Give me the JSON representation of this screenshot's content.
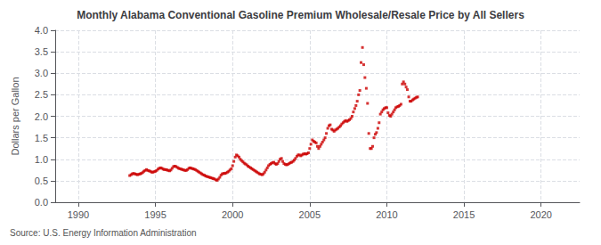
{
  "chart_data": {
    "type": "scatter",
    "title": "Monthly Alabama Conventional Gasoline Premium Wholesale/Resale Price by All Sellers",
    "ylabel": "Dollars per Gallon",
    "source": "Source: U.S. Energy Information Administration",
    "color": "#cc0000",
    "marker": "square",
    "grid": true,
    "xlim": [
      1988.5,
      2022.5
    ],
    "xticks": [
      1990,
      1995,
      2000,
      2005,
      2010,
      2015,
      2020
    ],
    "ylim": [
      0.0,
      4.0
    ],
    "yticks": [
      {
        "value": 0,
        "label": "0.0"
      },
      0.5,
      {
        "value": 1,
        "label": "1.0"
      },
      1.5,
      {
        "value": 2,
        "label": "2.0"
      },
      2.5,
      {
        "value": 3,
        "label": "3.0"
      },
      3.5,
      {
        "value": 4,
        "label": "4.0"
      }
    ],
    "x": [
      1993.33,
      1993.42,
      1993.5,
      1993.58,
      1993.67,
      1993.75,
      1993.83,
      1993.92,
      1994.0,
      1994.08,
      1994.17,
      1994.25,
      1994.33,
      1994.42,
      1994.5,
      1994.58,
      1994.67,
      1994.75,
      1994.83,
      1994.92,
      1995.0,
      1995.08,
      1995.17,
      1995.25,
      1995.33,
      1995.42,
      1995.5,
      1995.58,
      1995.67,
      1995.75,
      1995.83,
      1995.92,
      1996.0,
      1996.08,
      1996.17,
      1996.25,
      1996.33,
      1996.42,
      1996.5,
      1996.58,
      1996.67,
      1996.75,
      1996.83,
      1996.92,
      1997.0,
      1997.08,
      1997.17,
      1997.25,
      1997.33,
      1997.42,
      1997.5,
      1997.58,
      1997.67,
      1997.75,
      1997.83,
      1997.92,
      1998.0,
      1998.08,
      1998.17,
      1998.25,
      1998.33,
      1998.42,
      1998.5,
      1998.58,
      1998.67,
      1998.75,
      1998.83,
      1998.92,
      1999.0,
      1999.08,
      1999.17,
      1999.25,
      1999.33,
      1999.42,
      1999.5,
      1999.58,
      1999.67,
      1999.75,
      1999.83,
      1999.92,
      2000.0,
      2000.08,
      2000.17,
      2000.25,
      2000.33,
      2000.42,
      2000.5,
      2000.58,
      2000.67,
      2000.75,
      2000.83,
      2000.92,
      2001.0,
      2001.08,
      2001.17,
      2001.25,
      2001.33,
      2001.42,
      2001.5,
      2001.58,
      2001.67,
      2001.75,
      2001.83,
      2001.92,
      2002.0,
      2002.08,
      2002.17,
      2002.25,
      2002.33,
      2002.42,
      2002.5,
      2002.58,
      2002.67,
      2002.75,
      2002.83,
      2002.92,
      2003.0,
      2003.08,
      2003.17,
      2003.25,
      2003.33,
      2003.42,
      2003.5,
      2003.58,
      2003.67,
      2003.75,
      2003.83,
      2003.92,
      2004.0,
      2004.08,
      2004.17,
      2004.25,
      2004.33,
      2004.42,
      2004.5,
      2004.58,
      2004.67,
      2004.75,
      2004.83,
      2004.92,
      2005.0,
      2005.08,
      2005.17,
      2005.25,
      2005.33,
      2005.42,
      2005.5,
      2005.58,
      2005.67,
      2005.75,
      2005.83,
      2005.92,
      2006.0,
      2006.08,
      2006.17,
      2006.25,
      2006.33,
      2006.42,
      2006.5,
      2006.58,
      2006.67,
      2006.75,
      2006.83,
      2006.92,
      2007.0,
      2007.08,
      2007.17,
      2007.25,
      2007.33,
      2007.42,
      2007.5,
      2007.58,
      2007.67,
      2007.75,
      2007.83,
      2007.92,
      2008.0,
      2008.08,
      2008.17,
      2008.25,
      2008.33,
      2008.42,
      2008.5,
      2008.58,
      2008.67,
      2008.75,
      2008.83,
      2008.92,
      2009.0,
      2009.08,
      2009.17,
      2009.25,
      2009.33,
      2009.42,
      2009.5,
      2009.58,
      2009.67,
      2009.75,
      2009.83,
      2009.92,
      2010.0,
      2010.08,
      2010.17,
      2010.25,
      2010.33,
      2010.42,
      2010.5,
      2010.58,
      2010.67,
      2010.75,
      2010.83,
      2010.92,
      2011.0,
      2011.08,
      2011.17,
      2011.25,
      2011.33,
      2011.42,
      2011.5,
      2011.58,
      2011.67,
      2011.75,
      2011.83,
      2011.92,
      2012.0
    ],
    "values": [
      0.62,
      0.64,
      0.66,
      0.67,
      0.66,
      0.65,
      0.64,
      0.65,
      0.66,
      0.67,
      0.69,
      0.72,
      0.74,
      0.76,
      0.74,
      0.73,
      0.72,
      0.7,
      0.7,
      0.71,
      0.72,
      0.74,
      0.77,
      0.79,
      0.8,
      0.79,
      0.77,
      0.76,
      0.76,
      0.75,
      0.74,
      0.73,
      0.75,
      0.79,
      0.83,
      0.84,
      0.83,
      0.81,
      0.79,
      0.78,
      0.77,
      0.76,
      0.75,
      0.74,
      0.74,
      0.76,
      0.79,
      0.8,
      0.79,
      0.78,
      0.77,
      0.76,
      0.74,
      0.72,
      0.7,
      0.68,
      0.66,
      0.64,
      0.63,
      0.61,
      0.6,
      0.59,
      0.58,
      0.57,
      0.56,
      0.55,
      0.54,
      0.52,
      0.51,
      0.54,
      0.58,
      0.63,
      0.66,
      0.67,
      0.67,
      0.68,
      0.7,
      0.72,
      0.75,
      0.78,
      0.85,
      0.95,
      1.05,
      1.1,
      1.08,
      1.05,
      1.0,
      0.97,
      0.94,
      0.91,
      0.89,
      0.87,
      0.84,
      0.82,
      0.8,
      0.78,
      0.76,
      0.74,
      0.72,
      0.7,
      0.68,
      0.66,
      0.65,
      0.64,
      0.66,
      0.7,
      0.75,
      0.8,
      0.85,
      0.88,
      0.9,
      0.92,
      0.93,
      0.9,
      0.88,
      0.9,
      0.95,
      1.0,
      1.02,
      0.95,
      0.9,
      0.88,
      0.87,
      0.88,
      0.9,
      0.92,
      0.93,
      0.95,
      0.98,
      1.02,
      1.07,
      1.1,
      1.1,
      1.08,
      1.1,
      1.12,
      1.13,
      1.12,
      1.13,
      1.15,
      1.25,
      1.35,
      1.45,
      1.42,
      1.4,
      1.38,
      1.3,
      1.25,
      1.3,
      1.35,
      1.4,
      1.45,
      1.5,
      1.6,
      1.72,
      1.78,
      1.8,
      1.7,
      1.68,
      1.65,
      1.68,
      1.7,
      1.72,
      1.75,
      1.78,
      1.82,
      1.85,
      1.88,
      1.9,
      1.88,
      1.9,
      1.92,
      1.95,
      2.0,
      2.1,
      2.18,
      2.25,
      2.35,
      2.5,
      2.6,
      3.25,
      3.6,
      3.2,
      2.9,
      2.65,
      2.3,
      1.6,
      1.25,
      1.25,
      1.3,
      1.5,
      1.58,
      1.62,
      1.72,
      1.85,
      2.05,
      2.1,
      2.15,
      2.18,
      2.2,
      2.2,
      2.08,
      2.02,
      2.0,
      2.05,
      2.1,
      2.15,
      2.2,
      2.22,
      2.23,
      2.25,
      2.28,
      2.75,
      2.8,
      2.75,
      2.68,
      2.62,
      2.45,
      2.35,
      2.35,
      2.38,
      2.4,
      2.42,
      2.44,
      2.45
    ]
  }
}
